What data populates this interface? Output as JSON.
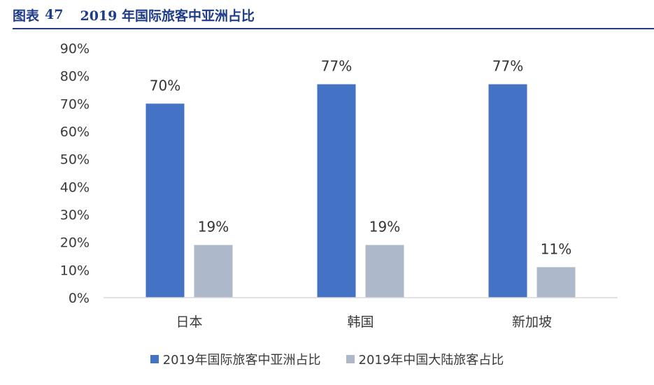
{
  "header": {
    "figure_label": "图表",
    "figure_number": "47",
    "title": "2019 年国际旅客中亚洲占比"
  },
  "colors": {
    "header": "#1f3c88",
    "series_1": "#4472c4",
    "series_2": "#adb9ca",
    "axis": "#d9d9d9"
  },
  "chart_data": {
    "type": "bar",
    "categories": [
      "日本",
      "韩国",
      "新加坡"
    ],
    "series": [
      {
        "name": "2019年国际旅客中亚洲占比",
        "values": [
          70,
          77,
          77
        ],
        "labels": [
          "70%",
          "77%",
          "77%"
        ]
      },
      {
        "name": "2019年中国大陆旅客占比",
        "values": [
          19,
          19,
          11
        ],
        "labels": [
          "19%",
          "19%",
          "11%"
        ]
      }
    ],
    "ylim": [
      0,
      90
    ],
    "yticks": [
      "0%",
      "10%",
      "20%",
      "30%",
      "40%",
      "50%",
      "60%",
      "70%",
      "80%",
      "90%"
    ],
    "unit": "%",
    "grid": false,
    "legend_position": "bottom"
  }
}
